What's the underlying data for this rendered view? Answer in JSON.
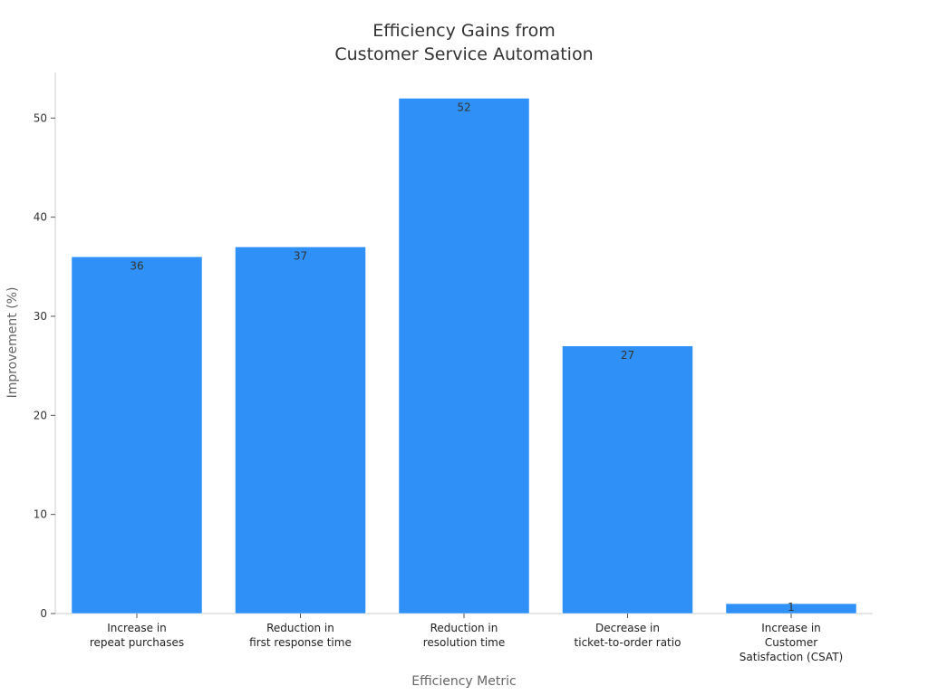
{
  "chart_data": {
    "type": "bar",
    "title": [
      "Efficiency Gains from",
      "Customer Service Automation"
    ],
    "xlabel": "Efficiency Metric",
    "ylabel": "Improvement (%)",
    "categories": [
      [
        "Increase in",
        "repeat purchases"
      ],
      [
        "Reduction in",
        "first response time"
      ],
      [
        "Reduction in",
        "resolution time"
      ],
      [
        "Decrease in",
        "ticket-to-order ratio"
      ],
      [
        "Increase in",
        "Customer",
        "Satisfaction (CSAT)"
      ]
    ],
    "values": [
      36,
      37,
      52,
      27,
      1
    ],
    "data_labels": [
      "36",
      "37",
      "52",
      "27",
      "1"
    ],
    "ylim": [
      0,
      54.6
    ],
    "yticks": [
      0,
      10,
      20,
      30,
      40,
      50
    ],
    "bar_color": "#2f91f7",
    "grid": false,
    "legend": "none"
  }
}
